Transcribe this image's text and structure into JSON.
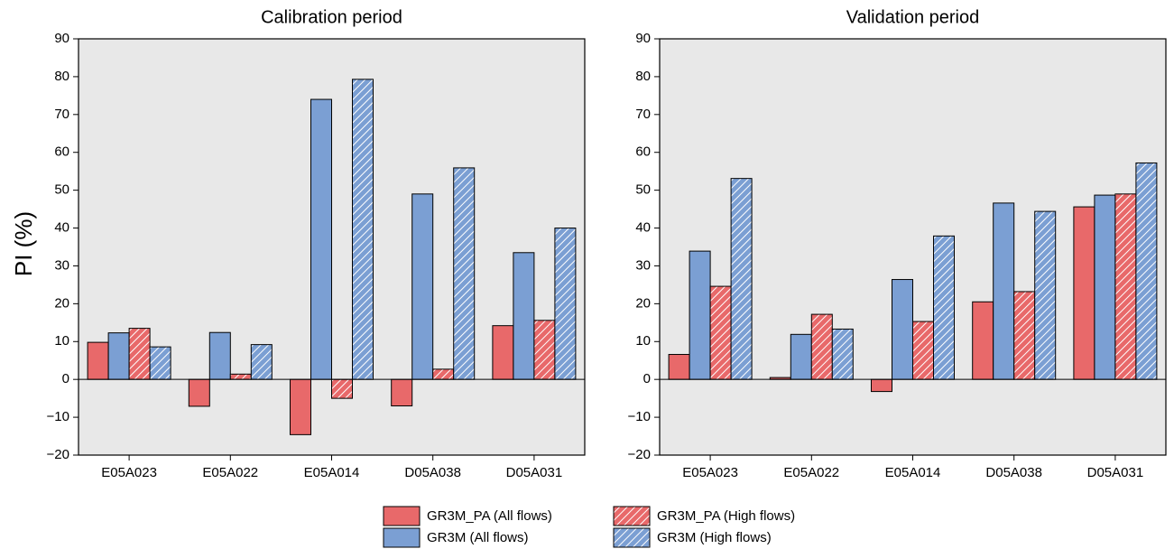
{
  "y_label": "PI (%)",
  "chart_data": [
    {
      "type": "bar",
      "title": "Calibration period",
      "categories": [
        "E05A023",
        "E05A022",
        "E05A014",
        "D05A038",
        "D05A031"
      ],
      "series": [
        {
          "name": "GR3M_PA (All flows)",
          "color": "#e8696a",
          "hatch": false,
          "values": [
            9.8,
            -7.1,
            -14.6,
            -7.0,
            14.2
          ]
        },
        {
          "name": "GR3M (All flows)",
          "color": "#7b9fd3",
          "hatch": false,
          "values": [
            12.3,
            12.4,
            74.0,
            49.0,
            33.5
          ]
        },
        {
          "name": "GR3M_PA (High flows)",
          "color": "#e8696a",
          "hatch": true,
          "values": [
            13.5,
            1.4,
            -5.0,
            2.7,
            15.6
          ]
        },
        {
          "name": "GR3M (High flows)",
          "color": "#7b9fd3",
          "hatch": true,
          "values": [
            8.6,
            9.2,
            79.3,
            55.9,
            40.0
          ]
        }
      ],
      "ylim": [
        -20,
        90
      ],
      "yticks": [
        {
          "value": -20,
          "label": "−20"
        },
        {
          "value": -10,
          "label": "−10"
        },
        0,
        10,
        20,
        30,
        40,
        50,
        60,
        70,
        80,
        90
      ]
    },
    {
      "type": "bar",
      "title": "Validation period",
      "categories": [
        "E05A023",
        "E05A022",
        "E05A014",
        "D05A038",
        "D05A031"
      ],
      "series": [
        {
          "color": "#e8696a",
          "hatch": false,
          "values": [
            6.6,
            0.5,
            -3.2,
            20.5,
            45.6
          ]
        },
        {
          "color": "#7b9fd3",
          "hatch": false,
          "values": [
            33.9,
            11.9,
            26.4,
            46.6,
            48.7
          ]
        },
        {
          "color": "#e8696a",
          "hatch": true,
          "values": [
            24.6,
            17.2,
            15.3,
            23.2,
            49.0
          ]
        },
        {
          "color": "#7b9fd3",
          "hatch": true,
          "values": [
            53.1,
            13.3,
            37.9,
            44.4,
            57.2
          ]
        }
      ],
      "ylim": [
        -20,
        90
      ],
      "yticks": [
        {
          "value": -20,
          "label": "−20"
        },
        {
          "value": -10,
          "label": "−10"
        },
        0,
        10,
        20,
        30,
        40,
        50,
        60,
        70,
        80,
        90
      ]
    }
  ]
}
